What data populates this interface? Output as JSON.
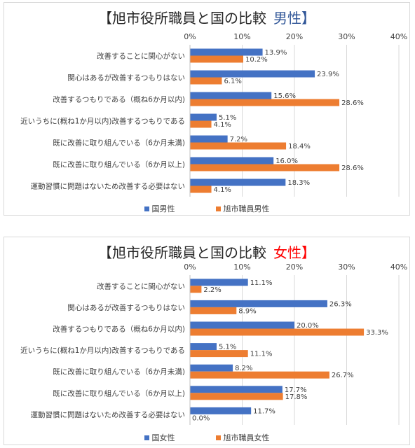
{
  "chart_data": [
    {
      "type": "bar",
      "orientation": "horizontal",
      "title_prefix": "【旭市役所職員と国の比較",
      "title_highlight": "男性】",
      "highlight_color": "#2f5597",
      "categories": [
        "改善することに関心がない",
        "関心はあるが改善するつもりはない",
        "改善するつもりである（概ね6か月以内)",
        "近いうちに(概ね1か月以内)改善するつもりである",
        "既に改善に取り組んでいる（6か月未満)",
        "既に改善に取り組んでいる（6か月以上)",
        "運動習慣に問題はないため改善する必要はない"
      ],
      "series": [
        {
          "name": "国男性",
          "color": "#4472c4",
          "values": [
            13.9,
            23.9,
            15.6,
            5.1,
            7.2,
            16.0,
            18.3
          ]
        },
        {
          "name": "旭市職員男性",
          "color": "#ed7d31",
          "values": [
            10.2,
            6.1,
            28.6,
            4.1,
            18.4,
            28.6,
            4.1
          ]
        }
      ],
      "xlim": [
        0,
        40
      ],
      "xticks": [
        "0%",
        "10%",
        "20%",
        "30%",
        "40%"
      ],
      "grid": true,
      "legend_position": "bottom"
    },
    {
      "type": "bar",
      "orientation": "horizontal",
      "title_prefix": "【旭市役所職員と国の比較",
      "title_highlight": "女性】",
      "highlight_color": "#ff0000",
      "categories": [
        "改善することに関心がない",
        "関心はあるが改善するつもりはない",
        "改善するつもりである（概ね6か月以内)",
        "近いうちに(概ね1か月以内)改善するつもりである",
        "既に改善に取り組んでいる（6か月未満)",
        "既に改善に取り組んでいる（6か月以上)",
        "運動習慣に問題はないため改善する必要はない"
      ],
      "series": [
        {
          "name": "国女性",
          "color": "#4472c4",
          "values": [
            11.1,
            26.3,
            20.0,
            5.1,
            8.2,
            17.7,
            11.7
          ]
        },
        {
          "name": "旭市職員女性",
          "color": "#ed7d31",
          "values": [
            2.2,
            8.9,
            33.3,
            11.1,
            26.7,
            17.8,
            0.0
          ]
        }
      ],
      "xlim": [
        0,
        40
      ],
      "xticks": [
        "0%",
        "10%",
        "20%",
        "30%",
        "40%"
      ],
      "grid": true,
      "legend_position": "bottom"
    }
  ]
}
